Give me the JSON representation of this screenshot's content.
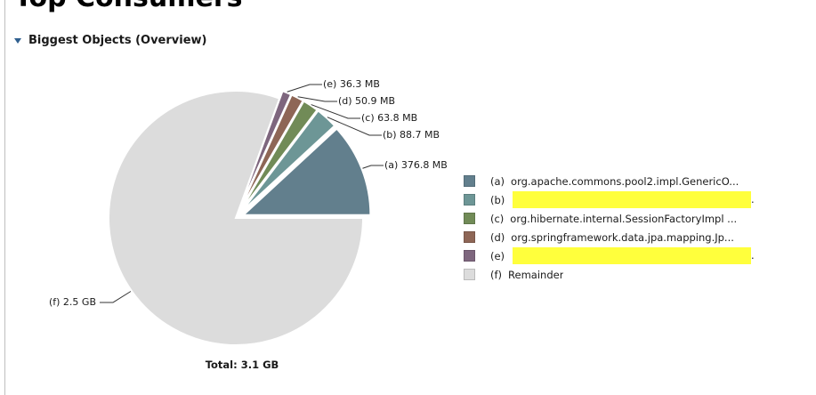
{
  "page": {
    "title": "Top Consumers"
  },
  "section": {
    "title": "Biggest Objects (Overview)"
  },
  "chart_data": {
    "type": "pie",
    "total_label": "Total: 3.1 GB",
    "total_bytes_mb": 3174.4,
    "slices": [
      {
        "key": "(a)",
        "value": 376.8,
        "value_label": "376.8 MB",
        "name": "org.apache.commons.pool2.impl.GenericO...",
        "color": "#627f8d"
      },
      {
        "key": "(b)",
        "value": 88.7,
        "value_label": "88.7 MB",
        "name": "",
        "redacted": true,
        "color": "#6d9696"
      },
      {
        "key": "(c)",
        "value": 63.8,
        "value_label": "63.8 MB",
        "name": "org.hibernate.internal.SessionFactoryImpl ...",
        "color": "#718b57"
      },
      {
        "key": "(d)",
        "value": 50.9,
        "value_label": "50.9 MB",
        "name": "org.springframework.data.jpa.mapping.Jp...",
        "color": "#8e6656"
      },
      {
        "key": "(e)",
        "value": 36.3,
        "value_label": "36.3 MB",
        "name": "",
        "redacted": true,
        "color": "#7e667e"
      },
      {
        "key": "(f)",
        "value": 2557.9,
        "value_label": "2.5 GB",
        "name": "Remainder",
        "color": "#dcdcdc"
      }
    ],
    "legend_position": "right"
  }
}
